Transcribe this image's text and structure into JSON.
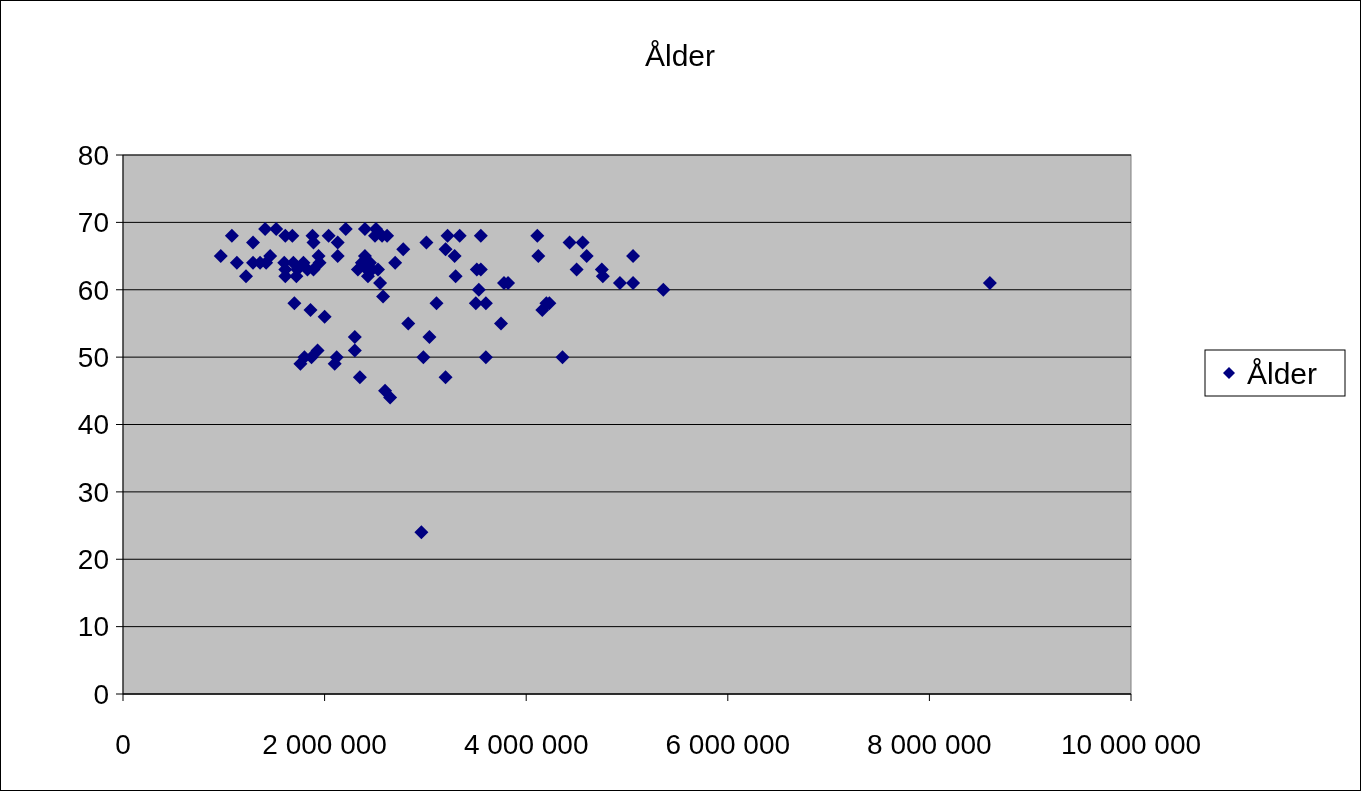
{
  "chart_data": {
    "type": "scatter",
    "title": "Ålder",
    "marker": "diamond",
    "legend": "right",
    "grid": "y",
    "xlim": [
      0,
      10000000
    ],
    "xticks": [
      0,
      {
        "value": 2000000,
        "label": "2 000 000"
      },
      {
        "value": 4000000,
        "label": "4 000 000"
      },
      {
        "value": 6000000,
        "label": "6 000 000"
      },
      {
        "value": 8000000,
        "label": "8 000 000"
      },
      {
        "value": 10000000,
        "label": "10 000 000"
      }
    ],
    "ylim": [
      0,
      80
    ],
    "yticks": [
      0,
      10,
      20,
      30,
      40,
      50,
      60,
      70,
      80
    ],
    "series": [
      {
        "name": "Ålder",
        "color": "#000080",
        "x": [
          970000,
          1080000,
          1130000,
          1220000,
          1290000,
          1290000,
          1360000,
          1410000,
          1420000,
          1460000,
          1520000,
          1600000,
          1610000,
          1610000,
          1610000,
          1680000,
          1690000,
          1700000,
          1720000,
          1730000,
          1760000,
          1790000,
          1800000,
          1830000,
          1860000,
          1870000,
          1880000,
          1890000,
          1890000,
          1930000,
          1940000,
          1950000,
          2000000,
          2040000,
          2100000,
          2120000,
          2130000,
          2130000,
          2210000,
          2300000,
          2300000,
          2330000,
          2350000,
          2370000,
          2400000,
          2400000,
          2420000,
          2430000,
          2450000,
          2470000,
          2500000,
          2510000,
          2530000,
          2550000,
          2570000,
          2580000,
          2600000,
          2620000,
          2650000,
          2700000,
          2780000,
          2830000,
          2960000,
          2980000,
          3010000,
          3040000,
          3110000,
          3200000,
          3200000,
          3220000,
          3290000,
          3300000,
          3340000,
          3500000,
          3510000,
          3530000,
          3550000,
          3550000,
          3600000,
          3600000,
          3750000,
          3780000,
          3820000,
          4110000,
          4120000,
          4160000,
          4200000,
          4230000,
          4360000,
          4430000,
          4500000,
          4560000,
          4600000,
          4750000,
          4760000,
          4930000,
          5060000,
          5060000,
          5360000,
          8600000
        ],
        "values": [
          65,
          68,
          64,
          62,
          67,
          64,
          64,
          69,
          64,
          65,
          69,
          64,
          68,
          63,
          62,
          68,
          64,
          58,
          62,
          63,
          49,
          64,
          50,
          63,
          57,
          50,
          68,
          67,
          63,
          51,
          65,
          64,
          56,
          68,
          49,
          50,
          65,
          67,
          69,
          53,
          51,
          63,
          47,
          64,
          69,
          65,
          63,
          62,
          64,
          63,
          68,
          69,
          63,
          61,
          68,
          59,
          45,
          68,
          44,
          64,
          66,
          55,
          24,
          50,
          67,
          53,
          58,
          66,
          47,
          68,
          65,
          62,
          68,
          58,
          63,
          60,
          68,
          63,
          58,
          50,
          55,
          61,
          61,
          68,
          65,
          57,
          58,
          58,
          50,
          67,
          63,
          67,
          65,
          63,
          62,
          61,
          61,
          65,
          60,
          61
        ]
      }
    ]
  }
}
